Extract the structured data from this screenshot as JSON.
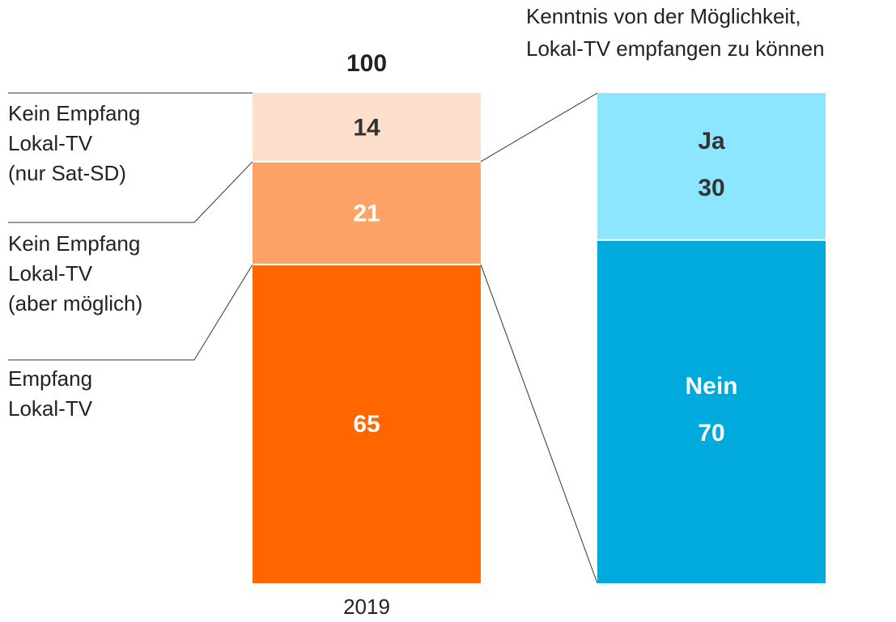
{
  "chart_data": [
    {
      "type": "bar",
      "stacked": true,
      "categories": [
        "2019"
      ],
      "total": 100,
      "ylim": [
        0,
        100
      ],
      "series": [
        {
          "name": "Empfang\nLokal-TV",
          "color": "#ff6600",
          "values": [
            65
          ]
        },
        {
          "name": "Kein Empfang\nLokal-TV\n(aber möglich)",
          "color": "#fea366",
          "values": [
            21
          ]
        },
        {
          "name": "Kein Empfang\nLokal-TV\n(nur Sat-SD)",
          "color": "#fde0cc",
          "values": [
            14
          ]
        }
      ]
    },
    {
      "type": "bar",
      "stacked": true,
      "title": "Kenntnis von der Möglichkeit,\nLokal-TV empfangen zu können",
      "categories": [
        null
      ],
      "ylim": [
        0,
        100
      ],
      "series": [
        {
          "name": "Nein",
          "color": "#00aadd",
          "values": [
            70
          ]
        },
        {
          "name": "Ja",
          "color": "#8ce6ff",
          "values": [
            30
          ]
        }
      ]
    }
  ]
}
